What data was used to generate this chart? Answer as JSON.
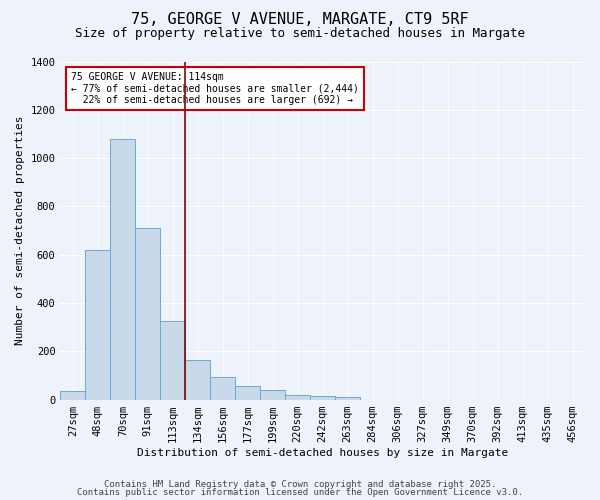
{
  "title1": "75, GEORGE V AVENUE, MARGATE, CT9 5RF",
  "title2": "Size of property relative to semi-detached houses in Margate",
  "xlabel": "Distribution of semi-detached houses by size in Margate",
  "ylabel": "Number of semi-detached properties",
  "categories": [
    "27sqm",
    "48sqm",
    "70sqm",
    "91sqm",
    "113sqm",
    "134sqm",
    "156sqm",
    "177sqm",
    "199sqm",
    "220sqm",
    "242sqm",
    "263sqm",
    "284sqm",
    "306sqm",
    "327sqm",
    "349sqm",
    "370sqm",
    "392sqm",
    "413sqm",
    "435sqm",
    "456sqm"
  ],
  "values": [
    37,
    620,
    1080,
    710,
    325,
    165,
    95,
    58,
    38,
    20,
    14,
    12,
    0,
    0,
    0,
    0,
    0,
    0,
    0,
    0,
    0
  ],
  "bar_color": "#c8daea",
  "bar_edge_color": "#6aaad4",
  "vline_color": "#8b0000",
  "annotation_text": "75 GEORGE V AVENUE: 114sqm\n← 77% of semi-detached houses are smaller (2,444)\n  22% of semi-detached houses are larger (692) →",
  "annotation_box_color": "#ffffff",
  "annotation_box_edge": "#cc0000",
  "ylim": [
    0,
    1400
  ],
  "yticks": [
    0,
    200,
    400,
    600,
    800,
    1000,
    1200,
    1400
  ],
  "footer1": "Contains HM Land Registry data © Crown copyright and database right 2025.",
  "footer2": "Contains public sector information licensed under the Open Government Licence v3.0.",
  "bg_color": "#eef2fb",
  "plot_bg_color": "#eef2fb",
  "title1_fontsize": 11,
  "title2_fontsize": 9,
  "axis_label_fontsize": 8,
  "tick_fontsize": 7.5,
  "annotation_fontsize": 7,
  "footer_fontsize": 6.5
}
